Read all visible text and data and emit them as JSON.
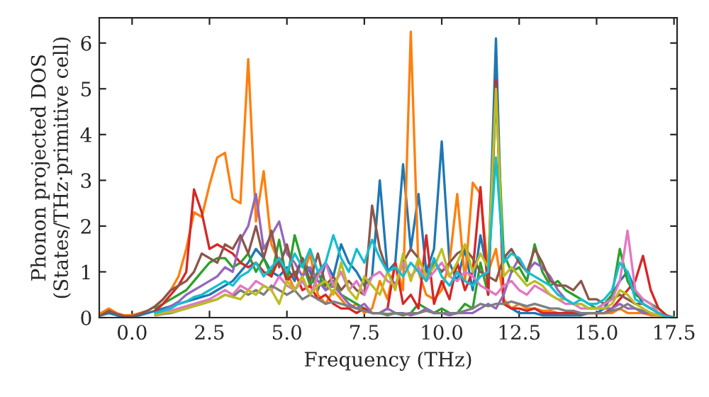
{
  "chart_data": {
    "type": "line",
    "xlabel": "Frequency (THz)",
    "ylabel": "Phonon projected DOS\n(States/THz·primitive cell)",
    "x": [
      -1.0,
      -0.75,
      -0.5,
      -0.25,
      0.0,
      0.25,
      0.5,
      0.75,
      1.0,
      1.25,
      1.5,
      1.75,
      2.0,
      2.25,
      2.5,
      2.75,
      3.0,
      3.25,
      3.5,
      3.75,
      4.0,
      4.25,
      4.5,
      4.75,
      5.0,
      5.25,
      5.5,
      5.75,
      6.0,
      6.25,
      6.5,
      6.75,
      7.0,
      7.25,
      7.5,
      7.75,
      8.0,
      8.25,
      8.5,
      8.75,
      9.0,
      9.25,
      9.5,
      9.75,
      10.0,
      10.25,
      10.5,
      10.75,
      11.0,
      11.25,
      11.5,
      11.75,
      12.0,
      12.25,
      12.5,
      12.75,
      13.0,
      13.25,
      13.5,
      13.75,
      14.0,
      14.25,
      14.5,
      14.75,
      15.0,
      15.25,
      15.5,
      15.75,
      16.0,
      16.25,
      16.5,
      16.75,
      17.0,
      17.25,
      17.5
    ],
    "series": [
      {
        "color": "#1f77b4",
        "values": [
          0.05,
          0.1,
          0.05,
          0.02,
          0.03,
          0.05,
          0.1,
          0.15,
          0.2,
          0.25,
          0.3,
          0.35,
          0.4,
          0.45,
          0.5,
          0.6,
          0.7,
          0.8,
          1.0,
          1.2,
          1.5,
          1.3,
          1.0,
          0.9,
          1.1,
          0.8,
          1.3,
          1.0,
          0.6,
          1.2,
          0.9,
          1.6,
          1.2,
          1.0,
          0.7,
          0.9,
          3.0,
          1.0,
          1.2,
          3.35,
          1.5,
          2.7,
          1.0,
          1.5,
          3.85,
          1.2,
          0.8,
          1.5,
          0.6,
          1.8,
          0.9,
          6.1,
          0.3,
          0.2,
          0.1,
          0.1,
          0.1,
          0.05,
          0.05,
          0.05,
          0.05,
          0.05,
          0.05,
          0.1,
          0.1,
          0.2,
          0.5,
          0.8,
          1.0,
          0.6,
          0.3,
          0.2,
          0.1,
          0.02,
          0.0
        ]
      },
      {
        "color": "#ff7f0e",
        "values": [
          0.1,
          0.2,
          0.1,
          0.05,
          0.05,
          0.1,
          0.15,
          0.25,
          0.4,
          0.6,
          0.9,
          1.5,
          2.3,
          2.2,
          2.9,
          3.5,
          3.6,
          2.6,
          2.5,
          5.65,
          2.1,
          3.2,
          1.6,
          1.2,
          1.0,
          0.6,
          0.9,
          1.4,
          0.5,
          0.3,
          0.6,
          0.4,
          0.2,
          0.3,
          0.1,
          0.2,
          0.8,
          0.4,
          1.2,
          0.6,
          6.25,
          1.0,
          0.5,
          0.4,
          0.6,
          1.2,
          2.7,
          0.8,
          2.95,
          2.7,
          1.0,
          1.5,
          0.4,
          0.2,
          0.3,
          0.2,
          0.2,
          0.15,
          0.15,
          0.1,
          0.1,
          0.1,
          0.1,
          0.1,
          0.1,
          0.1,
          0.1,
          0.2,
          0.1,
          0.1,
          0.1,
          0.05,
          0.05,
          0.02,
          0.0
        ]
      },
      {
        "color": "#2ca02c",
        "values": [
          null,
          null,
          null,
          null,
          null,
          null,
          null,
          0.2,
          0.3,
          0.4,
          0.5,
          0.6,
          0.8,
          1.0,
          1.2,
          1.3,
          1.3,
          1.1,
          1.2,
          1.4,
          1.0,
          1.3,
          0.9,
          1.7,
          0.8,
          1.8,
          1.2,
          0.7,
          1.0,
          0.6,
          0.8,
          0.5,
          0.4,
          0.3,
          0.2,
          0.1,
          0.1,
          0.05,
          0.1,
          0.05,
          0.1,
          0.3,
          0.2,
          0.1,
          0.2,
          0.1,
          0.1,
          0.3,
          0.2,
          1.2,
          0.5,
          4.9,
          1.4,
          1.0,
          1.1,
          0.8,
          1.6,
          1.0,
          0.7,
          0.8,
          0.6,
          0.5,
          0.4,
          0.3,
          0.2,
          0.3,
          0.5,
          1.5,
          0.8,
          0.5,
          0.4,
          0.3,
          0.2,
          0.05,
          0.0
        ]
      },
      {
        "color": "#d62728",
        "values": [
          null,
          null,
          null,
          null,
          null,
          null,
          null,
          0.15,
          0.3,
          0.5,
          0.7,
          1.0,
          2.8,
          2.3,
          1.5,
          1.6,
          1.5,
          1.4,
          1.2,
          1.1,
          1.2,
          1.0,
          0.9,
          1.3,
          0.8,
          1.0,
          0.6,
          0.7,
          0.4,
          0.5,
          0.3,
          0.2,
          0.2,
          0.1,
          0.2,
          0.1,
          0.1,
          0.2,
          1.2,
          0.3,
          0.5,
          0.2,
          1.8,
          0.3,
          0.8,
          0.4,
          1.2,
          0.6,
          1.0,
          2.85,
          0.5,
          5.2,
          0.3,
          0.2,
          0.2,
          0.15,
          0.2,
          0.1,
          0.1,
          0.1,
          0.1,
          0.1,
          0.1,
          0.1,
          0.1,
          0.1,
          0.2,
          0.4,
          0.6,
          0.8,
          1.35,
          0.6,
          0.2,
          0.05,
          0.0
        ]
      },
      {
        "color": "#9467bd",
        "values": [
          null,
          null,
          null,
          null,
          null,
          null,
          null,
          0.1,
          0.15,
          0.25,
          0.35,
          0.5,
          0.6,
          0.7,
          0.8,
          0.9,
          1.1,
          1.0,
          1.7,
          2.0,
          2.7,
          1.5,
          1.8,
          2.1,
          1.4,
          1.2,
          0.9,
          1.1,
          0.8,
          0.6,
          0.7,
          0.5,
          0.3,
          0.2,
          0.3,
          0.1,
          0.1,
          0.2,
          0.1,
          0.1,
          0.05,
          0.1,
          0.2,
          0.1,
          0.1,
          0.05,
          0.1,
          0.1,
          0.1,
          0.2,
          0.3,
          0.2,
          0.5,
          1.0,
          1.3,
          1.0,
          1.2,
          1.1,
          0.9,
          0.6,
          0.4,
          0.3,
          0.3,
          0.2,
          0.2,
          0.2,
          0.2,
          0.3,
          0.2,
          0.2,
          0.1,
          0.1,
          0.05,
          0.02,
          0.0
        ]
      },
      {
        "color": "#8c564b",
        "values": [
          0.05,
          0.15,
          0.08,
          0.03,
          0.03,
          0.08,
          0.15,
          0.25,
          0.4,
          0.6,
          0.7,
          0.8,
          1.0,
          1.4,
          1.3,
          1.2,
          1.6,
          1.5,
          1.8,
          1.4,
          2.0,
          1.3,
          1.9,
          1.1,
          1.6,
          0.9,
          1.3,
          0.8,
          1.4,
          0.7,
          0.9,
          0.6,
          0.8,
          0.6,
          0.5,
          2.45,
          1.5,
          1.0,
          0.7,
          1.2,
          1.5,
          1.3,
          0.9,
          1.2,
          1.0,
          1.2,
          1.4,
          1.5,
          1.3,
          1.0,
          0.9,
          0.8,
          1.3,
          1.5,
          1.2,
          1.0,
          1.5,
          1.2,
          0.8,
          0.7,
          0.7,
          0.6,
          0.8,
          0.4,
          0.4,
          0.3,
          0.4,
          0.5,
          0.4,
          0.3,
          0.3,
          0.2,
          0.1,
          0.02,
          0.0
        ]
      },
      {
        "color": "#e377c2",
        "values": [
          null,
          null,
          null,
          null,
          null,
          null,
          null,
          0.06,
          0.1,
          0.15,
          0.2,
          0.25,
          0.3,
          0.35,
          0.4,
          0.5,
          0.6,
          0.5,
          0.7,
          0.6,
          0.8,
          0.7,
          0.6,
          0.9,
          0.7,
          0.6,
          0.8,
          0.5,
          0.9,
          1.2,
          0.7,
          1.0,
          0.6,
          0.8,
          0.5,
          0.9,
          1.0,
          0.8,
          0.7,
          1.2,
          0.9,
          1.1,
          0.8,
          1.0,
          1.2,
          0.9,
          0.8,
          1.0,
          0.9,
          0.7,
          0.6,
          0.5,
          0.7,
          0.8,
          0.6,
          0.5,
          0.7,
          0.6,
          0.5,
          0.4,
          0.3,
          0.3,
          0.2,
          0.2,
          0.2,
          0.3,
          0.4,
          0.8,
          1.9,
          0.6,
          0.4,
          0.3,
          0.1,
          0.02,
          0.0
        ]
      },
      {
        "color": "#7f7f7f",
        "values": [
          null,
          null,
          null,
          null,
          null,
          null,
          null,
          0.05,
          0.08,
          0.1,
          0.15,
          0.2,
          0.25,
          0.3,
          0.35,
          0.4,
          0.5,
          0.45,
          0.6,
          0.5,
          0.6,
          0.5,
          0.7,
          0.6,
          0.5,
          0.6,
          0.4,
          0.5,
          0.4,
          0.3,
          0.35,
          0.3,
          0.25,
          0.2,
          0.15,
          0.1,
          0.1,
          0.08,
          0.1,
          0.08,
          0.1,
          0.1,
          0.15,
          0.1,
          0.1,
          0.1,
          0.1,
          0.15,
          0.2,
          0.3,
          0.25,
          0.3,
          0.3,
          0.35,
          0.3,
          0.25,
          0.3,
          0.25,
          0.2,
          0.2,
          0.15,
          0.15,
          0.1,
          0.1,
          0.1,
          0.1,
          0.15,
          0.2,
          0.3,
          0.2,
          0.15,
          0.1,
          0.05,
          0.01,
          0.0
        ]
      },
      {
        "color": "#bcbd22",
        "values": [
          null,
          null,
          null,
          null,
          null,
          null,
          null,
          0.06,
          0.1,
          0.12,
          0.15,
          0.2,
          0.25,
          0.3,
          0.35,
          0.4,
          0.5,
          0.45,
          0.4,
          0.6,
          0.5,
          0.7,
          0.6,
          0.3,
          0.8,
          0.6,
          0.9,
          0.5,
          0.7,
          0.8,
          0.5,
          1.2,
          0.6,
          0.4,
          0.9,
          0.7,
          0.5,
          1.0,
          0.6,
          1.4,
          0.8,
          1.3,
          0.9,
          1.1,
          1.5,
          0.9,
          1.2,
          1.6,
          1.0,
          1.4,
          1.1,
          5.0,
          0.9,
          1.1,
          0.9,
          0.7,
          0.8,
          0.7,
          0.5,
          0.4,
          0.4,
          0.3,
          0.3,
          0.2,
          0.2,
          0.2,
          0.3,
          0.6,
          0.5,
          0.3,
          0.2,
          0.1,
          0.05,
          0.01,
          0.0
        ]
      },
      {
        "color": "#17becf",
        "values": [
          null,
          null,
          null,
          null,
          null,
          null,
          null,
          0.1,
          0.15,
          0.2,
          0.3,
          0.35,
          0.45,
          0.5,
          0.6,
          0.7,
          0.8,
          0.7,
          0.9,
          1.0,
          1.2,
          0.9,
          1.1,
          1.3,
          1.0,
          1.4,
          1.1,
          1.5,
          1.0,
          1.2,
          1.8,
          1.3,
          1.0,
          1.5,
          1.2,
          1.7,
          1.3,
          1.0,
          1.1,
          0.9,
          1.2,
          1.0,
          0.8,
          1.3,
          0.9,
          0.7,
          1.0,
          0.8,
          0.7,
          0.9,
          1.0,
          3.5,
          1.2,
          1.4,
          1.3,
          1.0,
          0.9,
          0.8,
          0.7,
          0.5,
          0.4,
          0.3,
          0.4,
          0.3,
          0.3,
          0.4,
          0.6,
          1.2,
          1.0,
          0.4,
          0.3,
          0.2,
          0.1,
          0.02,
          0.0
        ]
      }
    ],
    "xlim": [
      -1.06,
      17.6
    ],
    "ylim": [
      0,
      6.55
    ],
    "xticks": [
      {
        "value": 0,
        "label": "0.0"
      },
      {
        "value": 2.5,
        "label": "2.5"
      },
      {
        "value": 5,
        "label": "5.0"
      },
      {
        "value": 7.5,
        "label": "7.5"
      },
      {
        "value": 10,
        "label": "10.0"
      },
      {
        "value": 12.5,
        "label": "12.5"
      },
      {
        "value": 15,
        "label": "15.0"
      },
      {
        "value": 17.5,
        "label": "17.5"
      }
    ],
    "yticks": [
      0,
      1,
      2,
      3,
      4,
      5,
      6
    ],
    "grid": false,
    "marker": "none",
    "line_style": "solid"
  }
}
